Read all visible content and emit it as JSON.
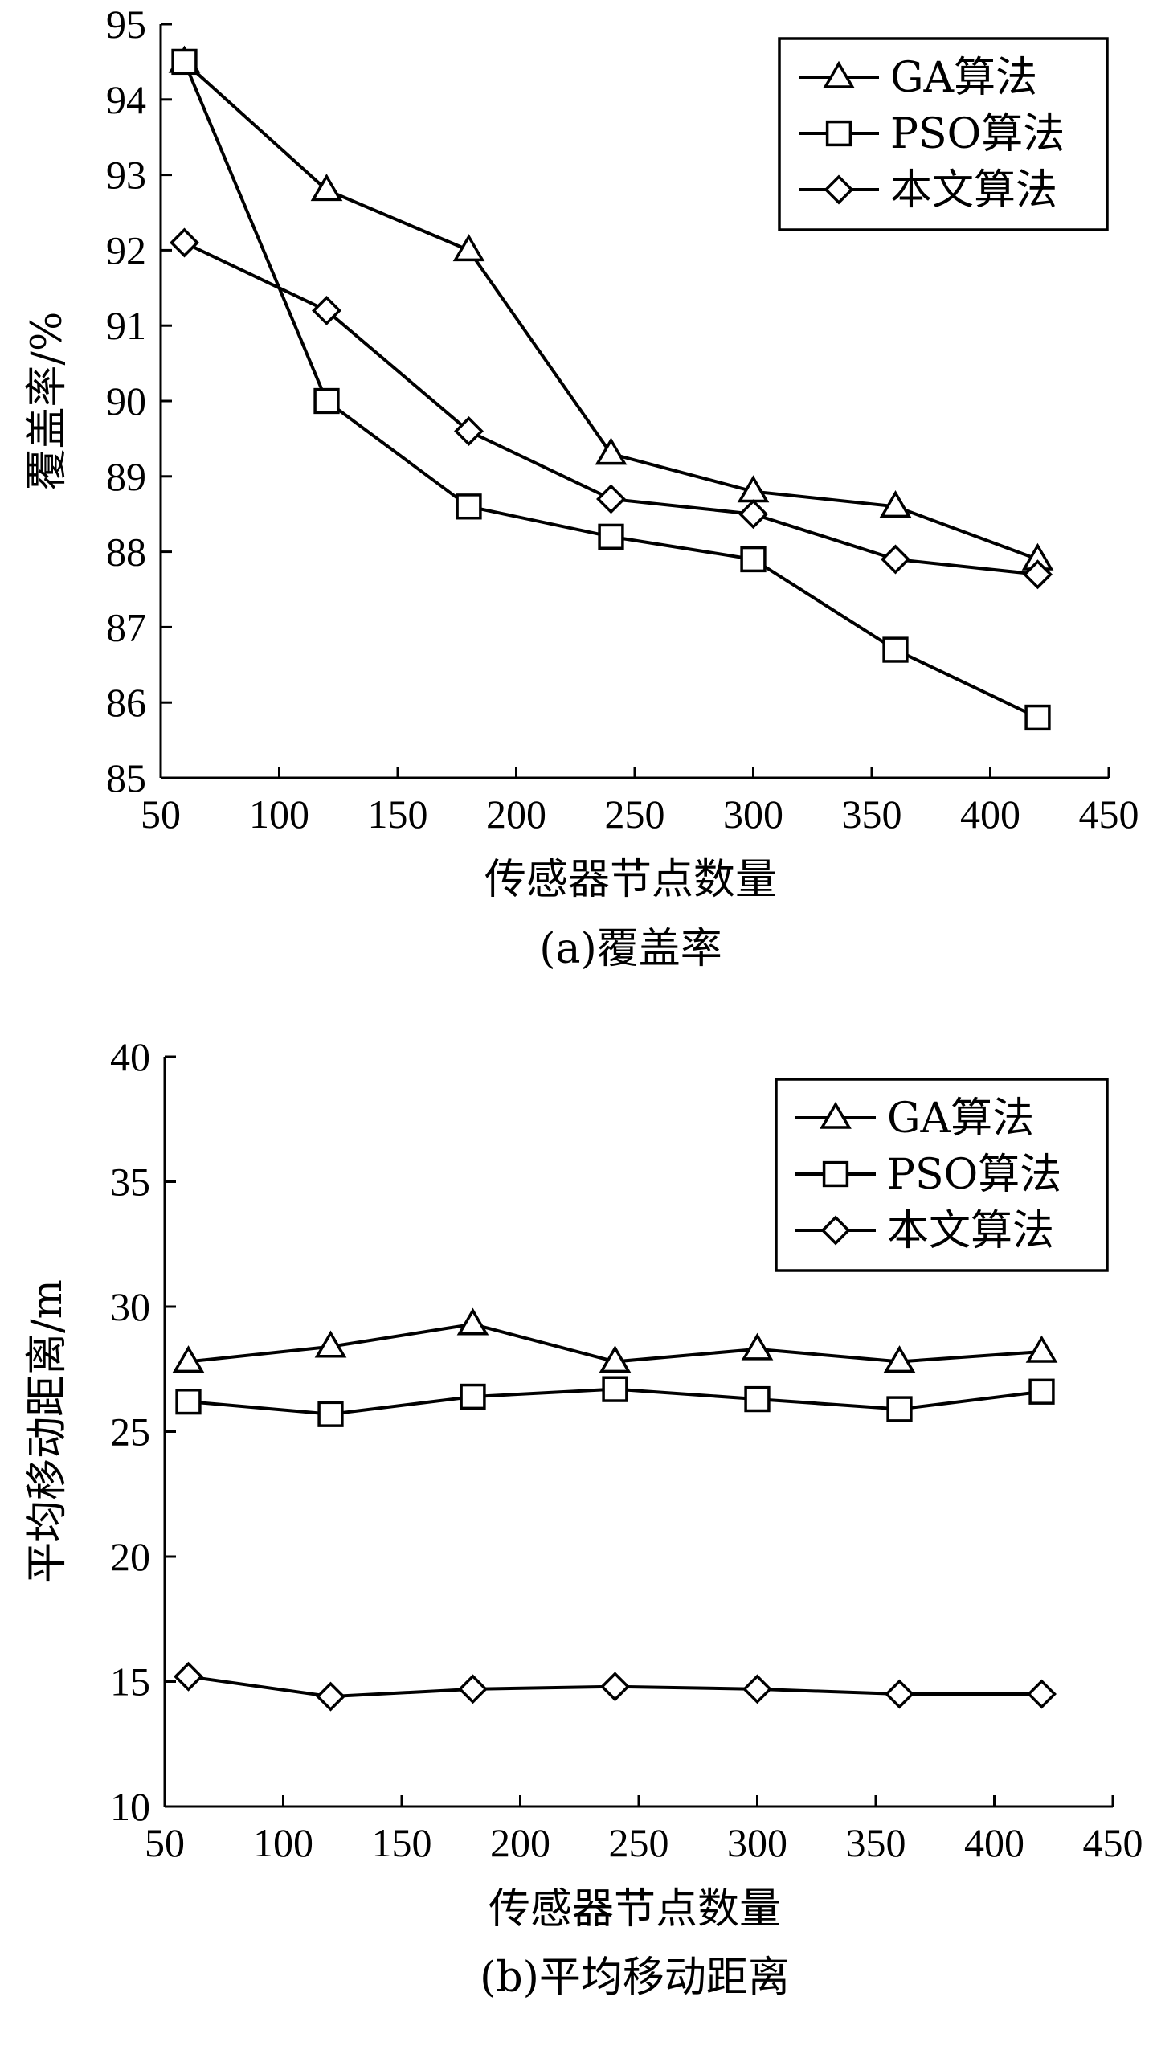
{
  "chart_data": [
    {
      "type": "line",
      "caption": "(a)覆盖率",
      "xlabel": "传感器节点数量",
      "ylabel": "覆盖率/%",
      "xlim": [
        50,
        450
      ],
      "ylim": [
        85,
        95
      ],
      "xticks": [
        50,
        100,
        150,
        200,
        250,
        300,
        350,
        400,
        450
      ],
      "yticks": [
        85,
        86,
        87,
        88,
        89,
        90,
        91,
        92,
        93,
        94,
        95
      ],
      "legend_position": "top-right",
      "grid": false,
      "x": [
        60,
        120,
        180,
        240,
        300,
        360,
        420
      ],
      "series": [
        {
          "name": "GA算法",
          "marker": "triangle",
          "values": [
            94.5,
            92.8,
            92.0,
            89.3,
            88.8,
            88.6,
            87.9
          ]
        },
        {
          "name": "PSO算法",
          "marker": "square",
          "values": [
            94.5,
            90.0,
            88.6,
            88.2,
            87.9,
            86.7,
            85.8
          ]
        },
        {
          "name": "本文算法",
          "marker": "diamond",
          "values": [
            92.1,
            91.2,
            89.6,
            88.7,
            88.5,
            87.9,
            87.7
          ]
        }
      ]
    },
    {
      "type": "line",
      "caption": "(b)平均移动距离",
      "xlabel": "传感器节点数量",
      "ylabel": "平均移动距离/m",
      "xlim": [
        50,
        450
      ],
      "ylim": [
        10,
        40
      ],
      "xticks": [
        50,
        100,
        150,
        200,
        250,
        300,
        350,
        400,
        450
      ],
      "yticks": [
        10,
        15,
        20,
        25,
        30,
        35,
        40
      ],
      "legend_position": "top-right",
      "grid": false,
      "x": [
        60,
        120,
        180,
        240,
        300,
        360,
        420
      ],
      "series": [
        {
          "name": "GA算法",
          "marker": "triangle",
          "values": [
            27.8,
            28.4,
            29.3,
            27.8,
            28.3,
            27.8,
            28.2
          ]
        },
        {
          "name": "PSO算法",
          "marker": "square",
          "values": [
            26.2,
            25.7,
            26.4,
            26.7,
            26.3,
            25.9,
            26.6
          ]
        },
        {
          "name": "本文算法",
          "marker": "diamond",
          "values": [
            15.2,
            14.4,
            14.7,
            14.8,
            14.7,
            14.5,
            14.5
          ]
        }
      ]
    }
  ]
}
